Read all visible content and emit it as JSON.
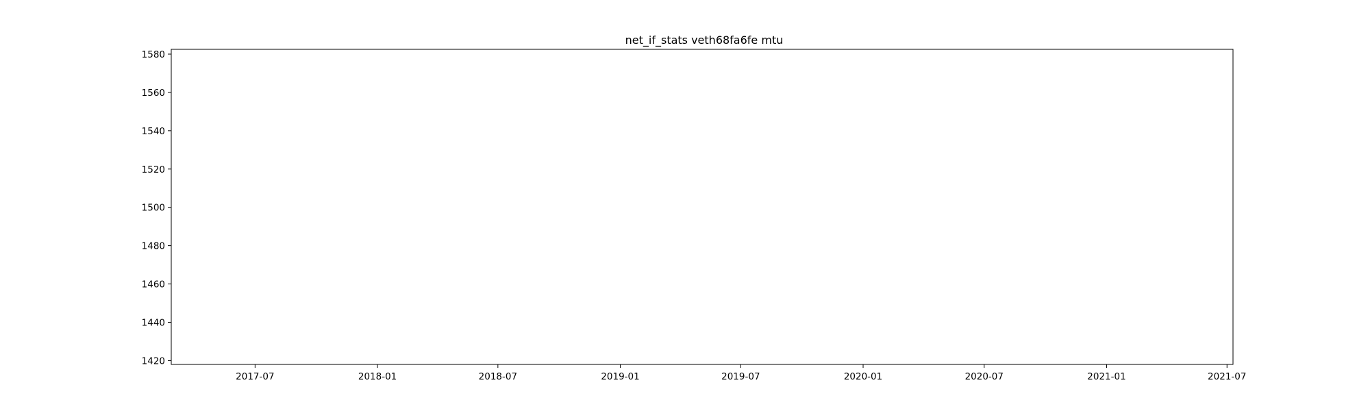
{
  "chart_data": {
    "type": "line",
    "title": "net_if_stats veth68fa6fe mtu",
    "xlabel": "",
    "ylabel": "",
    "series": [],
    "x_axis": {
      "kind": "date",
      "range": [
        "2017-02-25",
        "2021-07-10"
      ],
      "ticks": [
        "2017-07-01",
        "2018-01-01",
        "2018-07-01",
        "2019-01-01",
        "2019-07-01",
        "2020-01-01",
        "2020-07-01",
        "2021-01-01",
        "2021-07-01"
      ],
      "tick_labels": [
        "2017-07",
        "2018-01",
        "2018-07",
        "2019-01",
        "2019-07",
        "2020-01",
        "2020-07",
        "2021-01",
        "2021-07"
      ]
    },
    "y_axis": {
      "range": [
        1418,
        1582.5
      ],
      "ticks": [
        1420,
        1440,
        1460,
        1480,
        1500,
        1520,
        1540,
        1560,
        1580
      ],
      "tick_labels": [
        "1420",
        "1440",
        "1460",
        "1480",
        "1500",
        "1520",
        "1540",
        "1560",
        "1580"
      ]
    },
    "grid": false,
    "legend": "none"
  }
}
